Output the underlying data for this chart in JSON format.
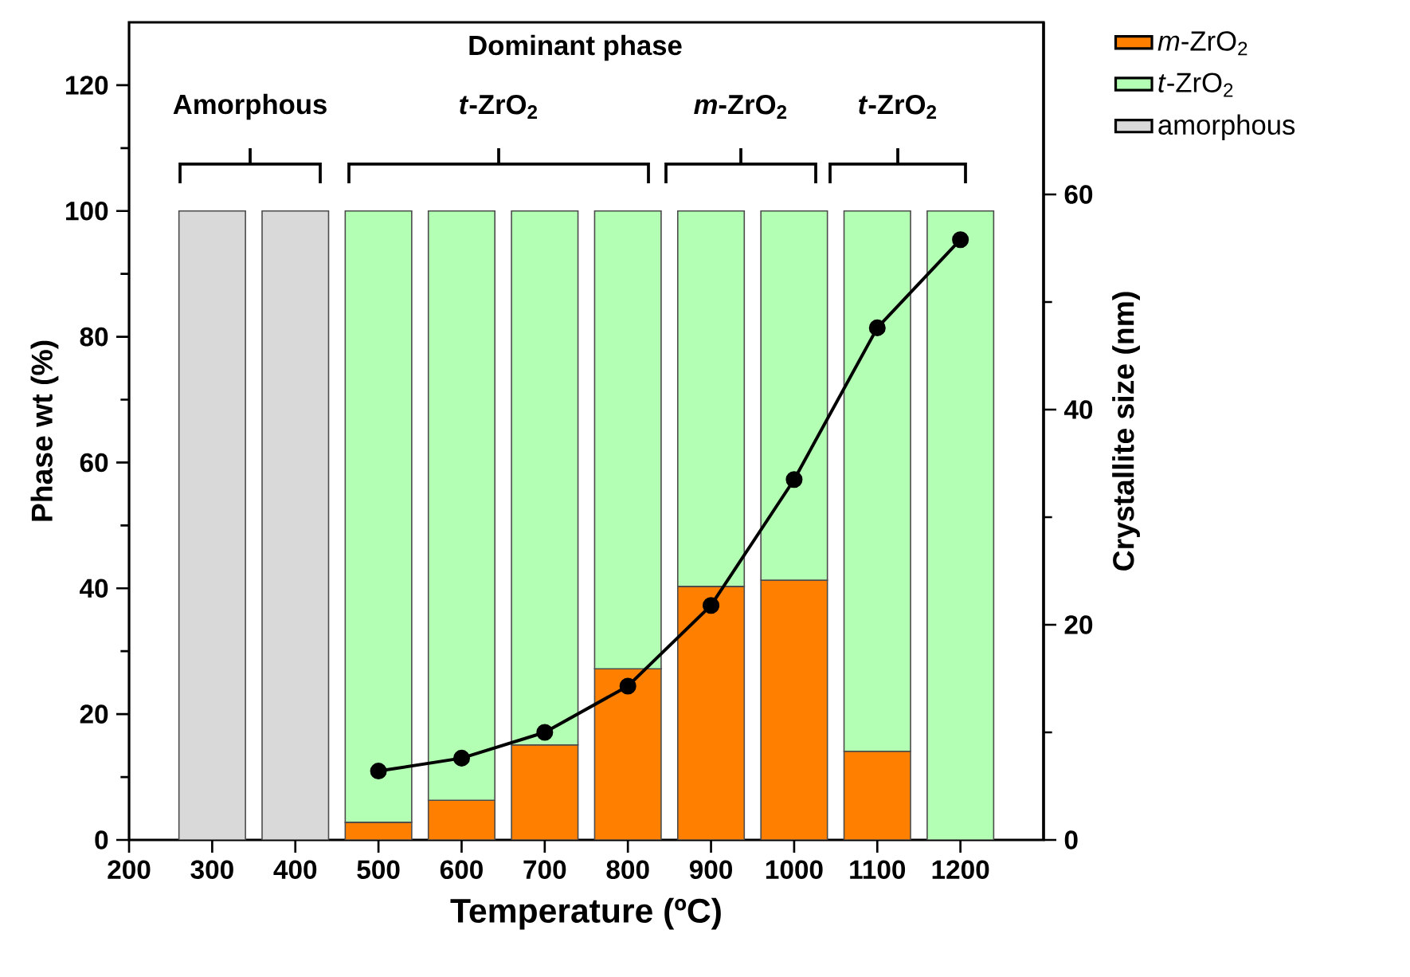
{
  "chart_data": {
    "type": "bar",
    "stacked": true,
    "xlabel": "Temperature (ºC)",
    "ylabel": "Phase wt (%)",
    "y2label": "Crystallite size (nm)",
    "x": [
      300,
      400,
      500,
      600,
      700,
      800,
      900,
      1000,
      1100,
      1200
    ],
    "xlim": [
      200,
      1300
    ],
    "xticks": [
      200,
      300,
      400,
      500,
      600,
      700,
      800,
      900,
      1000,
      1100,
      1200
    ],
    "ylim": [
      0,
      130
    ],
    "yticks": [
      0,
      20,
      40,
      60,
      80,
      100,
      120
    ],
    "y2lim": [
      0,
      76
    ],
    "y2ticks": [
      0,
      20,
      40,
      60
    ],
    "series": [
      {
        "name": "*m*-ZrO$_{2}$",
        "color": "#ff8000",
        "values": [
          null,
          null,
          2.8,
          6.3,
          15.1,
          27.2,
          40.3,
          41.3,
          14.1,
          0
        ]
      },
      {
        "name": "*t*-ZrO$_{2}$",
        "color": "#b3ffb3",
        "values": [
          null,
          null,
          97.2,
          93.7,
          84.9,
          72.8,
          59.7,
          58.7,
          85.9,
          100
        ]
      },
      {
        "name": "amorphous",
        "color": "#d9d9d9",
        "values": [
          100,
          100,
          null,
          null,
          null,
          null,
          null,
          null,
          null,
          null
        ]
      },
      {
        "type": "line",
        "axis": "y2",
        "color": "#000000",
        "marker": "circle",
        "line_style": "solid",
        "values": [
          null,
          null,
          6.4,
          7.6,
          10.0,
          14.3,
          21.8,
          33.5,
          47.6,
          55.8
        ]
      }
    ],
    "annotations": [
      "Dominant phase",
      "Amorphous",
      "*t*-ZrO$_{2}$",
      "*m*-ZrO$_{2}$",
      "*t*-ZrO$_{2}$"
    ],
    "legend": "top right"
  }
}
